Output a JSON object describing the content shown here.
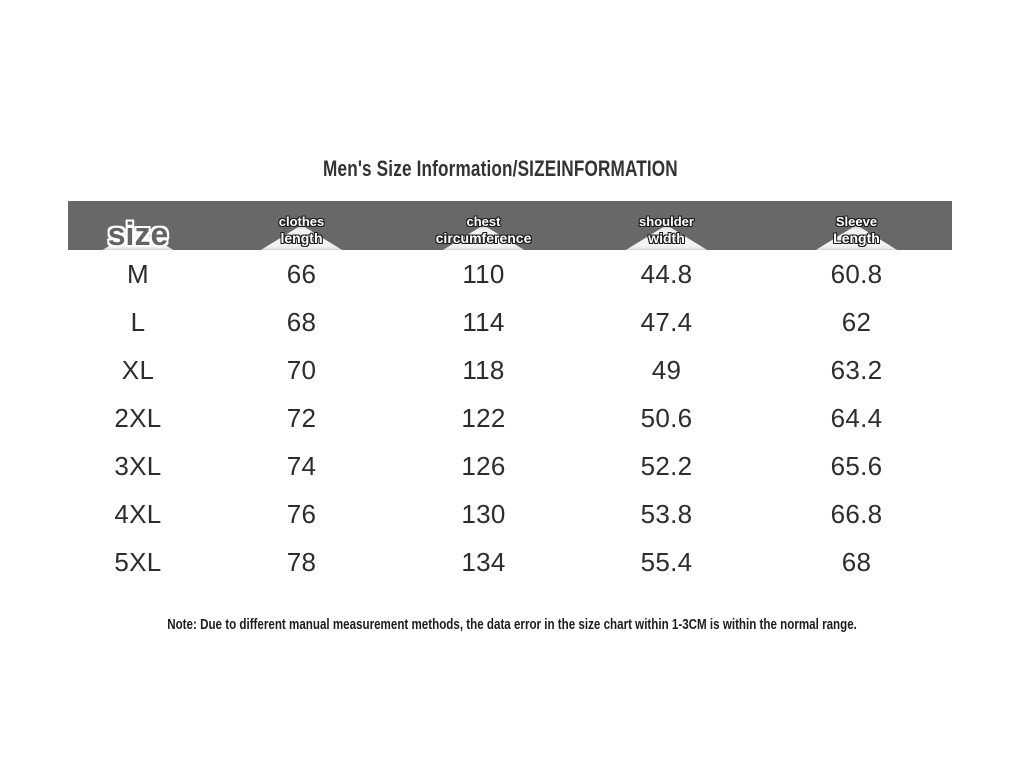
{
  "title": "Men's Size Information/SIZEINFORMATION",
  "table": {
    "size_header": "size",
    "columns": [
      {
        "line1": "clothes",
        "line2": "length"
      },
      {
        "line1": "chest",
        "line2": "circumference"
      },
      {
        "line1": "shoulder",
        "line2": "width"
      },
      {
        "line1": "Sleeve",
        "line2": "Length"
      }
    ],
    "rows": [
      {
        "size": "M",
        "values": [
          "66",
          "110",
          "44.8",
          "60.8"
        ]
      },
      {
        "size": "L",
        "values": [
          "68",
          "114",
          "47.4",
          "62"
        ]
      },
      {
        "size": "XL",
        "values": [
          "70",
          "118",
          "49",
          "63.2"
        ]
      },
      {
        "size": "2XL",
        "values": [
          "72",
          "122",
          "50.6",
          "64.4"
        ]
      },
      {
        "size": "3XL",
        "values": [
          "74",
          "126",
          "52.2",
          "65.6"
        ]
      },
      {
        "size": "4XL",
        "values": [
          "76",
          "130",
          "53.8",
          "66.8"
        ]
      },
      {
        "size": "5XL",
        "values": [
          "78",
          "134",
          "55.4",
          "68"
        ]
      }
    ]
  },
  "note": "Note: Due to different manual measurement methods, the data error in the size chart within 1-3CM is within the normal range.",
  "colors": {
    "header_bg": "#686868",
    "body_text": "#2d2d2d",
    "title_text": "#333333",
    "triangle": "#fbfbfb"
  }
}
